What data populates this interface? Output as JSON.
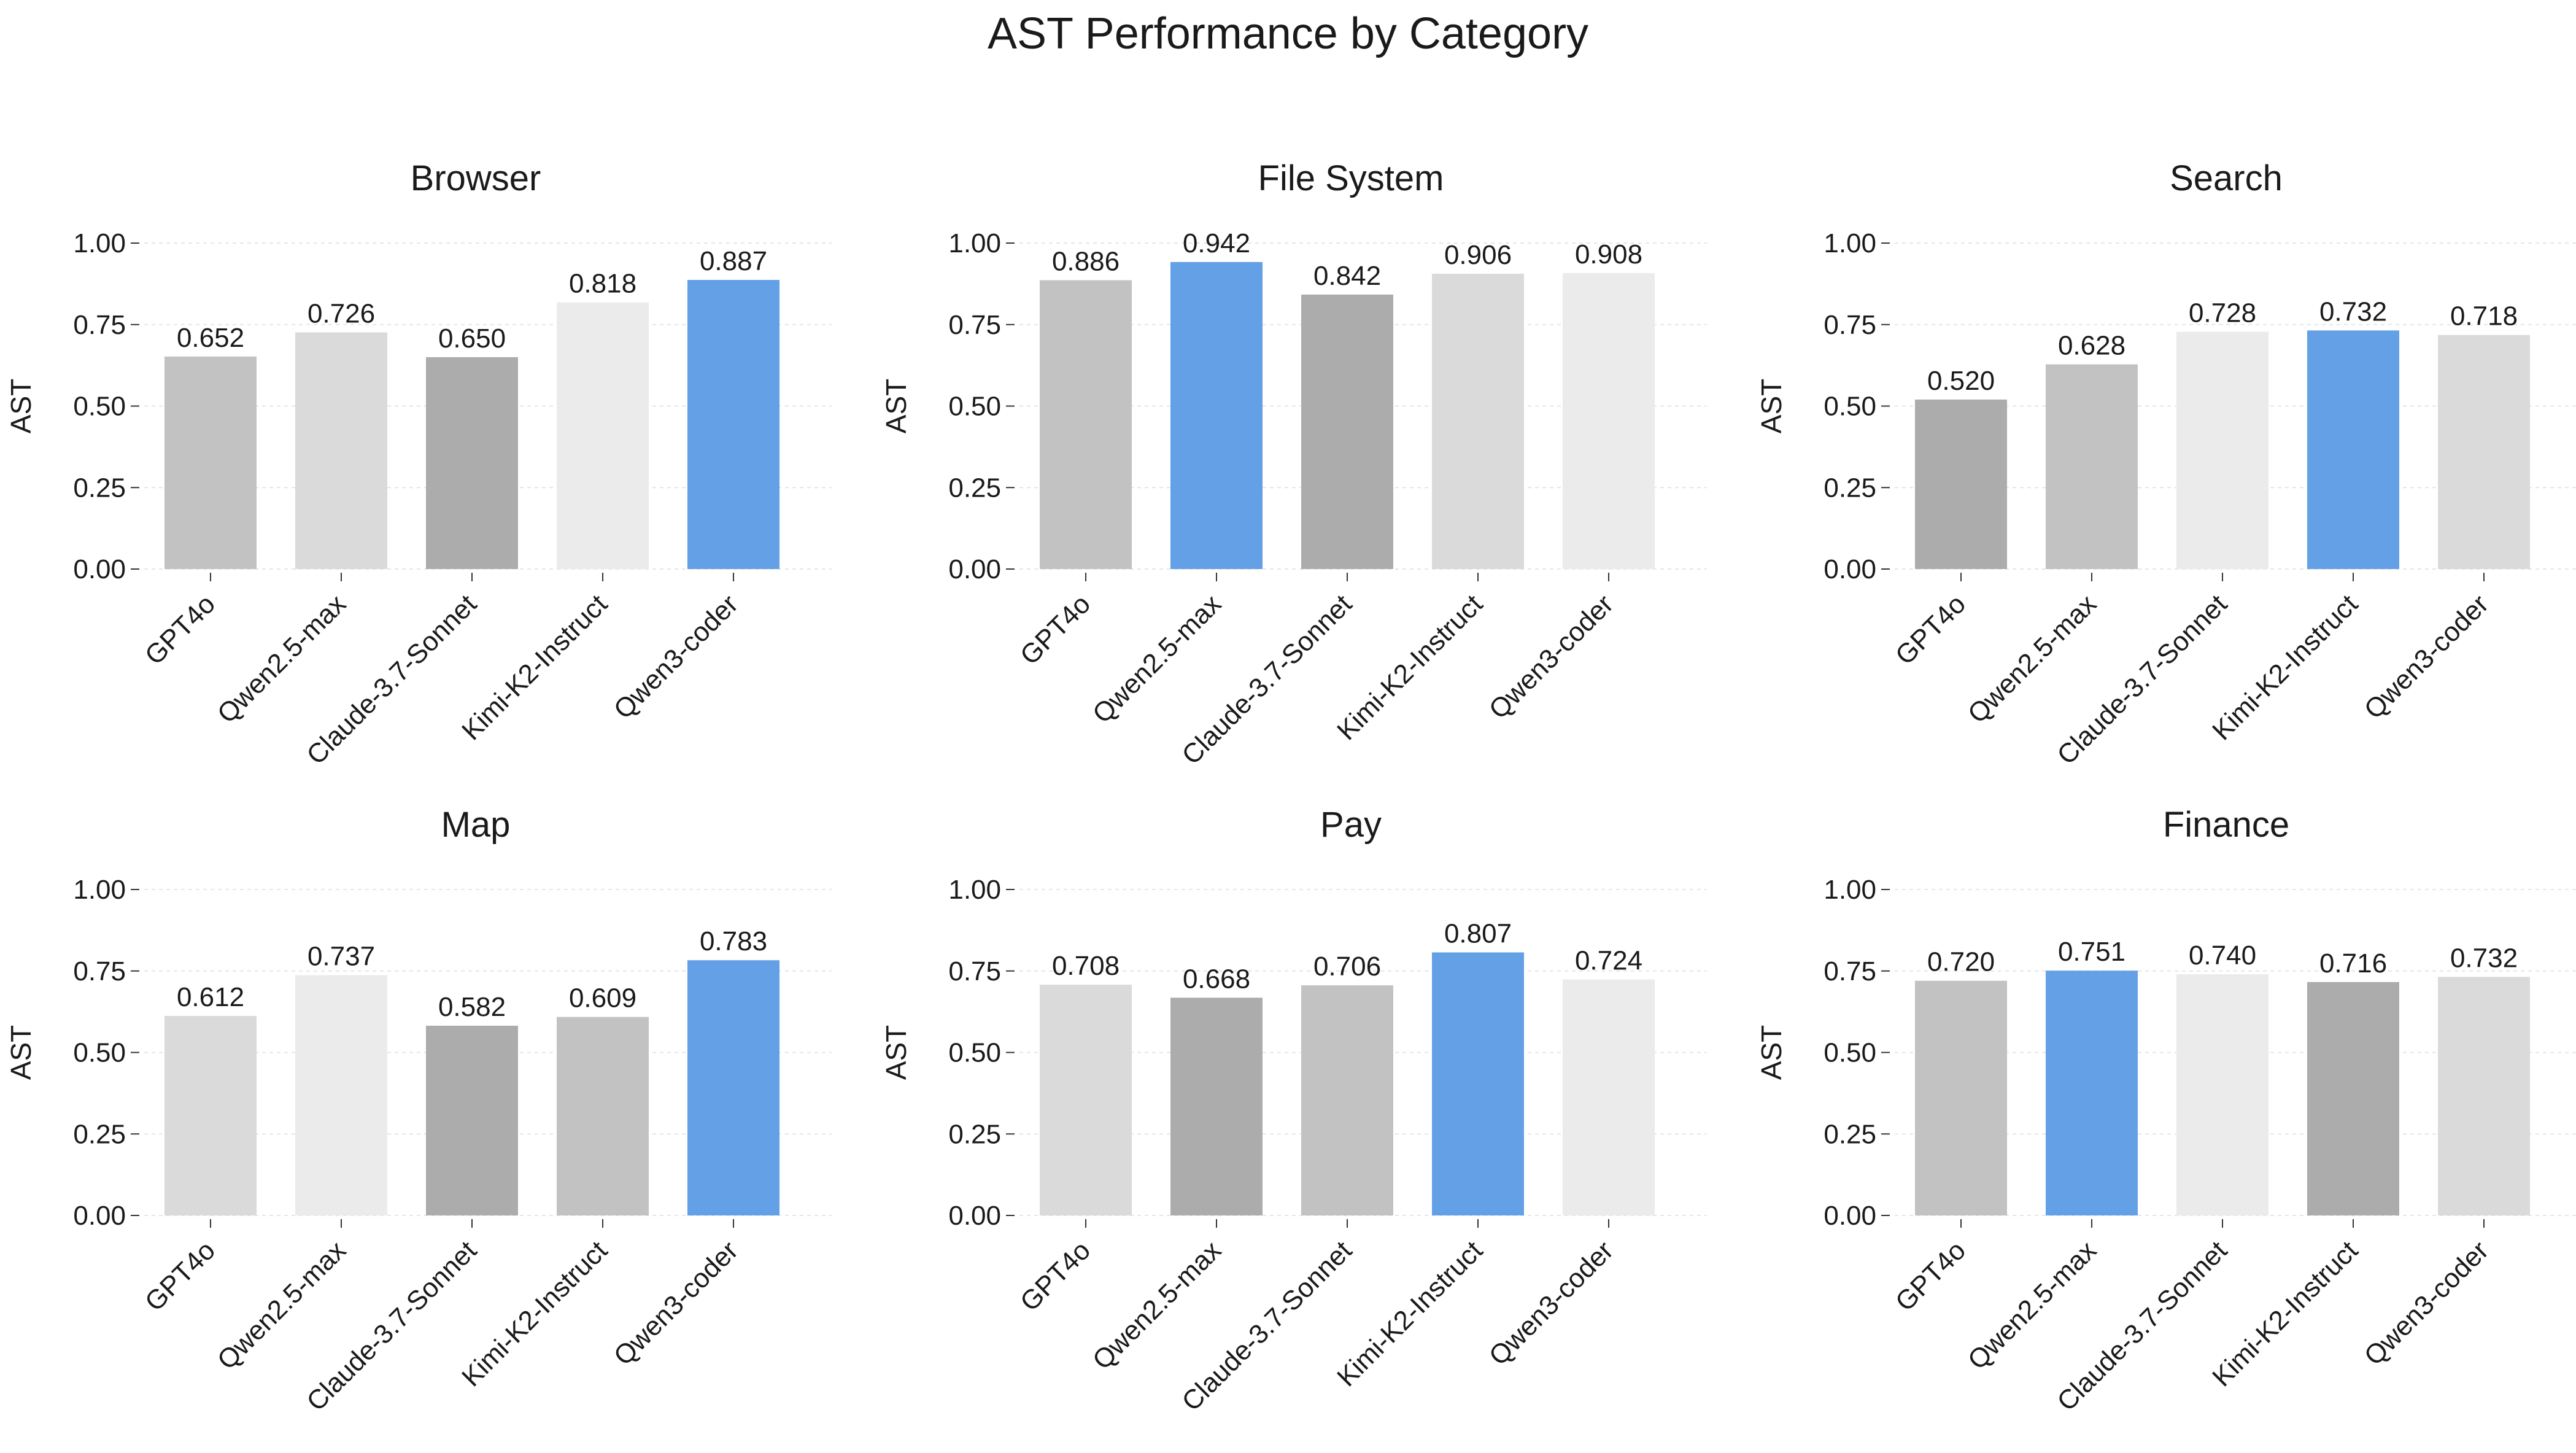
{
  "title": "AST Performance by Category",
  "colors": {
    "highlight": "#64a0e6",
    "gray_light": "#ebebeb",
    "gray_lighter": "#dadada",
    "gray_mid": "#c2c2c2",
    "gray_dark": "#acacac",
    "grid": "#e6e6e6",
    "axis": "#333333"
  },
  "chart_data": [
    {
      "type": "bar",
      "title": "Browser",
      "ylabel": "AST",
      "ylim": [
        0,
        1.0
      ],
      "yticks": [
        "0.00",
        "0.25",
        "0.50",
        "0.75",
        "1.00"
      ],
      "categories": [
        "GPT4o",
        "Qwen2.5-max",
        "Claude-3.7-Sonnet",
        "Kimi-K2-Instruct",
        "Qwen3-coder"
      ],
      "values": [
        0.652,
        0.726,
        0.65,
        0.818,
        0.887
      ],
      "labels": [
        "0.652",
        "0.726",
        "0.650",
        "0.818",
        "0.887"
      ],
      "bar_colors": [
        "#c2c2c2",
        "#dadada",
        "#acacac",
        "#ebebeb",
        "#64a0e6"
      ]
    },
    {
      "type": "bar",
      "title": "File System",
      "ylabel": "AST",
      "ylim": [
        0,
        1.0
      ],
      "yticks": [
        "0.00",
        "0.25",
        "0.50",
        "0.75",
        "1.00"
      ],
      "categories": [
        "GPT4o",
        "Qwen2.5-max",
        "Claude-3.7-Sonnet",
        "Kimi-K2-Instruct",
        "Qwen3-coder"
      ],
      "values": [
        0.886,
        0.942,
        0.842,
        0.906,
        0.908
      ],
      "labels": [
        "0.886",
        "0.942",
        "0.842",
        "0.906",
        "0.908"
      ],
      "bar_colors": [
        "#c2c2c2",
        "#64a0e6",
        "#acacac",
        "#dadada",
        "#ebebeb"
      ]
    },
    {
      "type": "bar",
      "title": "Search",
      "ylabel": "AST",
      "ylim": [
        0,
        1.0
      ],
      "yticks": [
        "0.00",
        "0.25",
        "0.50",
        "0.75",
        "1.00"
      ],
      "categories": [
        "GPT4o",
        "Qwen2.5-max",
        "Claude-3.7-Sonnet",
        "Kimi-K2-Instruct",
        "Qwen3-coder"
      ],
      "values": [
        0.52,
        0.628,
        0.728,
        0.732,
        0.718
      ],
      "labels": [
        "0.520",
        "0.628",
        "0.728",
        "0.732",
        "0.718"
      ],
      "bar_colors": [
        "#acacac",
        "#c2c2c2",
        "#ebebeb",
        "#64a0e6",
        "#dadada"
      ]
    },
    {
      "type": "bar",
      "title": "Map",
      "ylabel": "AST",
      "ylim": [
        0,
        1.0
      ],
      "yticks": [
        "0.00",
        "0.25",
        "0.50",
        "0.75",
        "1.00"
      ],
      "categories": [
        "GPT4o",
        "Qwen2.5-max",
        "Claude-3.7-Sonnet",
        "Kimi-K2-Instruct",
        "Qwen3-coder"
      ],
      "values": [
        0.612,
        0.737,
        0.582,
        0.609,
        0.783
      ],
      "labels": [
        "0.612",
        "0.737",
        "0.582",
        "0.609",
        "0.783"
      ],
      "bar_colors": [
        "#dadada",
        "#ebebeb",
        "#acacac",
        "#c2c2c2",
        "#64a0e6"
      ]
    },
    {
      "type": "bar",
      "title": "Pay",
      "ylabel": "AST",
      "ylim": [
        0,
        1.0
      ],
      "yticks": [
        "0.00",
        "0.25",
        "0.50",
        "0.75",
        "1.00"
      ],
      "categories": [
        "GPT4o",
        "Qwen2.5-max",
        "Claude-3.7-Sonnet",
        "Kimi-K2-Instruct",
        "Qwen3-coder"
      ],
      "values": [
        0.708,
        0.668,
        0.706,
        0.807,
        0.724
      ],
      "labels": [
        "0.708",
        "0.668",
        "0.706",
        "0.807",
        "0.724"
      ],
      "bar_colors": [
        "#dadada",
        "#acacac",
        "#c2c2c2",
        "#64a0e6",
        "#ebebeb"
      ]
    },
    {
      "type": "bar",
      "title": "Finance",
      "ylabel": "AST",
      "ylim": [
        0,
        1.0
      ],
      "yticks": [
        "0.00",
        "0.25",
        "0.50",
        "0.75",
        "1.00"
      ],
      "categories": [
        "GPT4o",
        "Qwen2.5-max",
        "Claude-3.7-Sonnet",
        "Kimi-K2-Instruct",
        "Qwen3-coder"
      ],
      "values": [
        0.72,
        0.751,
        0.74,
        0.716,
        0.732
      ],
      "labels": [
        "0.720",
        "0.751",
        "0.740",
        "0.716",
        "0.732"
      ],
      "bar_colors": [
        "#c2c2c2",
        "#64a0e6",
        "#ebebeb",
        "#acacac",
        "#dadada"
      ]
    }
  ]
}
